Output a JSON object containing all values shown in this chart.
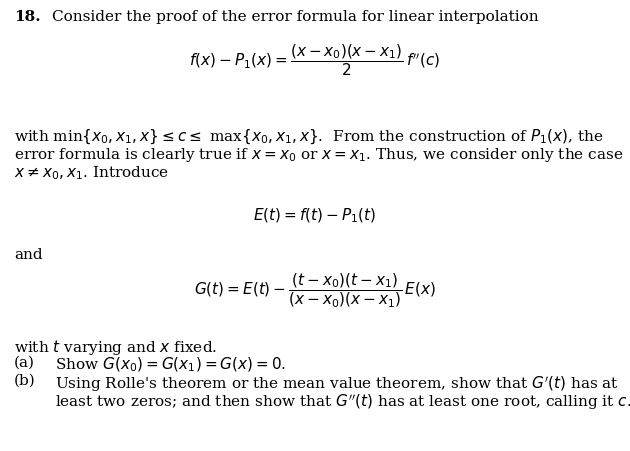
{
  "background_color": "#ffffff",
  "figure_width": 6.3,
  "figure_height": 4.51,
  "dpi": 100,
  "text_color": "#000000",
  "problem_number": "18.",
  "title_text": "Consider the proof of the error formula for linear interpolation",
  "para1": "with min$\\{x_0, x_1, x\\} \\leq c \\leq$ max$\\{x_0, x_1, x\\}$.  From the construction of $P_1(x)$, the",
  "para2": "error formula is clearly true if $x = x_0$ or $x = x_1$. Thus, we consider only the case",
  "para3": "$x \\neq x_0, x_1$. Introduce",
  "and_text": "and",
  "fixed_text": "with $t$ varying and $x$ fixed.",
  "part_a_label": "(a)",
  "part_a_text": "Show $G(x_0) = G(x_1) = G(x) = 0$.",
  "part_b_label": "(b)",
  "part_b_text1": "Using Rolle's theorem or the mean value theorem, show that $G'(t)$ has at",
  "part_b_text2": "least two zeros; and then show that $G''(t)$ has at least one root, calling it $c$.",
  "fs_body": 11.0,
  "fs_math": 11.0
}
